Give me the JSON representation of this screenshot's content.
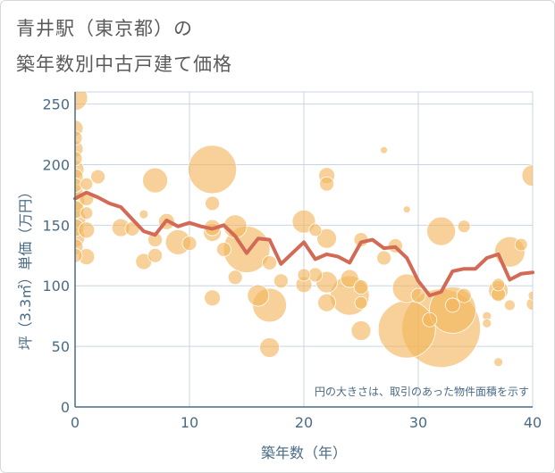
{
  "title_line1": "青井駅（東京都）の",
  "title_line2": "築年数別中古戸建て価格",
  "chart_data": {
    "type": "scatter",
    "title": "青井駅（東京都）の築年数別中古戸建て価格",
    "xlabel": "築年数（年）",
    "ylabel": "坪（3.3㎡）単価（万円）",
    "xlim": [
      0,
      40
    ],
    "ylim": [
      0,
      260
    ],
    "xticks": [
      "0",
      "10",
      "20",
      "30",
      "40"
    ],
    "yticks": [
      "0",
      "50",
      "100",
      "150",
      "200",
      "250"
    ],
    "note": "円の大きさは、取引のあった物件面積を示す",
    "colors": {
      "bubble": "#f2b55a",
      "line": "#d26a55",
      "grid": "#c8d4e0",
      "axis": "#4a6b86"
    },
    "bubbles": [
      {
        "x": 0,
        "y": 255,
        "s": 14
      },
      {
        "x": 0,
        "y": 230,
        "s": 9
      },
      {
        "x": 0,
        "y": 222,
        "s": 8
      },
      {
        "x": 0,
        "y": 213,
        "s": 9
      },
      {
        "x": 0,
        "y": 205,
        "s": 8
      },
      {
        "x": 0,
        "y": 196,
        "s": 10
      },
      {
        "x": 0,
        "y": 190,
        "s": 9
      },
      {
        "x": 0,
        "y": 183,
        "s": 8
      },
      {
        "x": 0,
        "y": 177,
        "s": 9
      },
      {
        "x": 0,
        "y": 170,
        "s": 11
      },
      {
        "x": 0,
        "y": 163,
        "s": 10
      },
      {
        "x": 0,
        "y": 155,
        "s": 12
      },
      {
        "x": 0,
        "y": 148,
        "s": 10
      },
      {
        "x": 0,
        "y": 140,
        "s": 11
      },
      {
        "x": 0,
        "y": 132,
        "s": 9
      },
      {
        "x": 0,
        "y": 125,
        "s": 8
      },
      {
        "x": 1,
        "y": 184,
        "s": 7
      },
      {
        "x": 1,
        "y": 172,
        "s": 8
      },
      {
        "x": 1,
        "y": 160,
        "s": 7
      },
      {
        "x": 1,
        "y": 146,
        "s": 9
      },
      {
        "x": 1,
        "y": 124,
        "s": 9
      },
      {
        "x": 2,
        "y": 190,
        "s": 8
      },
      {
        "x": 4,
        "y": 148,
        "s": 10
      },
      {
        "x": 5,
        "y": 147,
        "s": 8
      },
      {
        "x": 6,
        "y": 159,
        "s": 5
      },
      {
        "x": 6,
        "y": 120,
        "s": 9
      },
      {
        "x": 7,
        "y": 187,
        "s": 14
      },
      {
        "x": 7,
        "y": 138,
        "s": 8
      },
      {
        "x": 7,
        "y": 125,
        "s": 8
      },
      {
        "x": 8,
        "y": 153,
        "s": 9
      },
      {
        "x": 9,
        "y": 136,
        "s": 14
      },
      {
        "x": 10,
        "y": 135,
        "s": 8
      },
      {
        "x": 12,
        "y": 196,
        "s": 27
      },
      {
        "x": 12,
        "y": 168,
        "s": 8
      },
      {
        "x": 12,
        "y": 148,
        "s": 9
      },
      {
        "x": 12,
        "y": 144,
        "s": 10
      },
      {
        "x": 12,
        "y": 90,
        "s": 9
      },
      {
        "x": 13,
        "y": 130,
        "s": 8
      },
      {
        "x": 14,
        "y": 149,
        "s": 13
      },
      {
        "x": 14,
        "y": 107,
        "s": 8
      },
      {
        "x": 15,
        "y": 130,
        "s": 26
      },
      {
        "x": 16,
        "y": 92,
        "s": 12
      },
      {
        "x": 17,
        "y": 119,
        "s": 8
      },
      {
        "x": 17,
        "y": 84,
        "s": 19
      },
      {
        "x": 17,
        "y": 49,
        "s": 11
      },
      {
        "x": 18,
        "y": 104,
        "s": 8
      },
      {
        "x": 20,
        "y": 153,
        "s": 13
      },
      {
        "x": 20,
        "y": 109,
        "s": 7
      },
      {
        "x": 20,
        "y": 101,
        "s": 9
      },
      {
        "x": 21,
        "y": 146,
        "s": 7
      },
      {
        "x": 21,
        "y": 109,
        "s": 8
      },
      {
        "x": 22,
        "y": 191,
        "s": 9
      },
      {
        "x": 22,
        "y": 184,
        "s": 8
      },
      {
        "x": 22,
        "y": 139,
        "s": 11
      },
      {
        "x": 22,
        "y": 103,
        "s": 12
      },
      {
        "x": 22,
        "y": 86,
        "s": 10
      },
      {
        "x": 24,
        "y": 92,
        "s": 22
      },
      {
        "x": 24,
        "y": 106,
        "s": 10
      },
      {
        "x": 25,
        "y": 138,
        "s": 8
      },
      {
        "x": 25,
        "y": 99,
        "s": 8
      },
      {
        "x": 25,
        "y": 86,
        "s": 7
      },
      {
        "x": 25,
        "y": 63,
        "s": 11
      },
      {
        "x": 27,
        "y": 212,
        "s": 4
      },
      {
        "x": 27,
        "y": 123,
        "s": 8
      },
      {
        "x": 28,
        "y": 133,
        "s": 8
      },
      {
        "x": 29,
        "y": 163,
        "s": 4
      },
      {
        "x": 29,
        "y": 98,
        "s": 16
      },
      {
        "x": 29,
        "y": 64,
        "s": 32
      },
      {
        "x": 30,
        "y": 92,
        "s": 8
      },
      {
        "x": 31,
        "y": 72,
        "s": 8
      },
      {
        "x": 32,
        "y": 145,
        "s": 16
      },
      {
        "x": 32,
        "y": 65,
        "s": 44
      },
      {
        "x": 33,
        "y": 84,
        "s": 8
      },
      {
        "x": 33,
        "y": 80,
        "s": 26
      },
      {
        "x": 34,
        "y": 149,
        "s": 7
      },
      {
        "x": 34,
        "y": 92,
        "s": 8
      },
      {
        "x": 36,
        "y": 75,
        "s": 5
      },
      {
        "x": 36,
        "y": 69,
        "s": 5
      },
      {
        "x": 37,
        "y": 101,
        "s": 7
      },
      {
        "x": 37,
        "y": 96,
        "s": 11
      },
      {
        "x": 37,
        "y": 93,
        "s": 8
      },
      {
        "x": 37,
        "y": 37,
        "s": 5
      },
      {
        "x": 38,
        "y": 128,
        "s": 17
      },
      {
        "x": 38,
        "y": 84,
        "s": 6
      },
      {
        "x": 39,
        "y": 134,
        "s": 7
      },
      {
        "x": 40,
        "y": 191,
        "s": 12
      },
      {
        "x": 40,
        "y": 92,
        "s": 5
      },
      {
        "x": 40,
        "y": 85,
        "s": 7
      }
    ],
    "trend": {
      "x": [
        0,
        1,
        2,
        3,
        4,
        5,
        6,
        7,
        8,
        9,
        10,
        11,
        12,
        13,
        14,
        15,
        16,
        17,
        18,
        19,
        20,
        21,
        22,
        23,
        24,
        25,
        26,
        27,
        28,
        29,
        30,
        31,
        32,
        33,
        34,
        35,
        36,
        37,
        38,
        39,
        40
      ],
      "y": [
        172,
        177,
        173,
        168,
        165,
        155,
        145,
        142,
        154,
        149,
        152,
        149,
        147,
        150,
        141,
        127,
        139,
        138,
        118,
        127,
        136,
        122,
        126,
        124,
        119,
        136,
        138,
        131,
        132,
        123,
        104,
        92,
        95,
        112,
        114,
        114,
        123,
        126,
        105,
        110,
        111
      ]
    }
  }
}
